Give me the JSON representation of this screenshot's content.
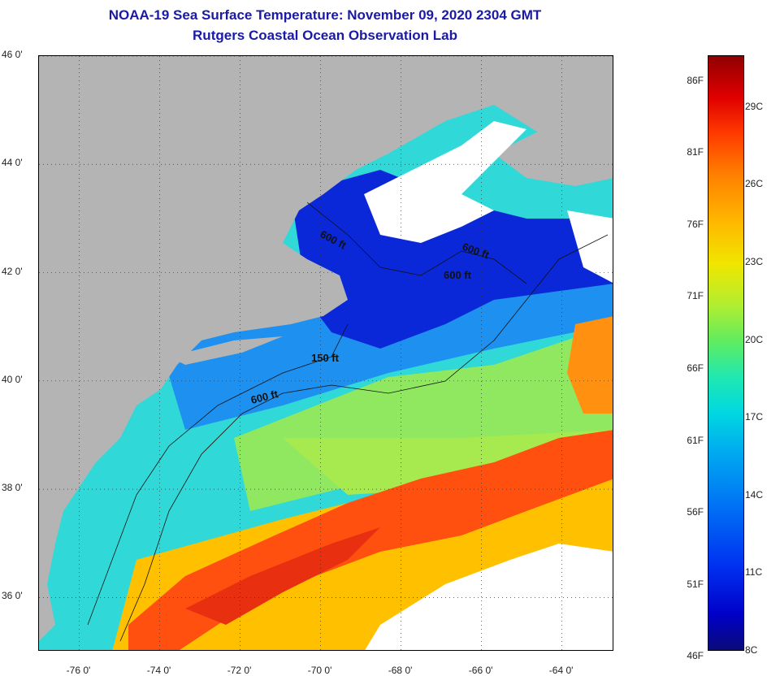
{
  "title": {
    "line1": "NOAA-19 Sea Surface Temperature:  November 09, 2020 2304 GMT",
    "line2": "Rutgers Coastal Ocean Observation Lab"
  },
  "map": {
    "lon_range": [
      -77,
      -62.7
    ],
    "lat_range": [
      35,
      46
    ],
    "lat_labels": [
      {
        "lat": 46,
        "text": "46 0'"
      },
      {
        "lat": 44,
        "text": "44 0'"
      },
      {
        "lat": 42,
        "text": "42 0'"
      },
      {
        "lat": 40,
        "text": "40 0'"
      },
      {
        "lat": 38,
        "text": "38 0'"
      },
      {
        "lat": 36,
        "text": "36 0'"
      }
    ],
    "lon_labels": [
      {
        "lon": -76,
        "text": "-76 0'"
      },
      {
        "lon": -74,
        "text": "-74 0'"
      },
      {
        "lon": -72,
        "text": "-72 0'"
      },
      {
        "lon": -70,
        "text": "-70 0'"
      },
      {
        "lon": -68,
        "text": "-68 0'"
      },
      {
        "lon": -66,
        "text": "-66 0'"
      },
      {
        "lon": -64,
        "text": "-64 0'"
      }
    ],
    "contour_labels": [
      "600 ft",
      "600 ft",
      "600 ft",
      "150 ft",
      "600 ft"
    ],
    "colors": {
      "land": "#b4b4b4",
      "cloud": "#ffffff",
      "cold": "#0a28d8",
      "cool": "#1e90f0",
      "mid": "#30d8d8",
      "mild": "#90e860",
      "warm": "#ffc000",
      "hot": "#ff5010"
    }
  },
  "colorbar": {
    "min_c": 8,
    "max_c": 31,
    "f_labels": [
      {
        "value": 86,
        "text": "86F"
      },
      {
        "value": 81,
        "text": "81F"
      },
      {
        "value": 76,
        "text": "76F"
      },
      {
        "value": 71,
        "text": "71F"
      },
      {
        "value": 66,
        "text": "66F"
      },
      {
        "value": 61,
        "text": "61F"
      },
      {
        "value": 56,
        "text": "56F"
      },
      {
        "value": 51,
        "text": "51F"
      },
      {
        "value": 46,
        "text": "46F"
      }
    ],
    "c_labels": [
      {
        "value": 29,
        "text": "29C"
      },
      {
        "value": 26,
        "text": "26C"
      },
      {
        "value": 23,
        "text": "23C"
      },
      {
        "value": 20,
        "text": "20C"
      },
      {
        "value": 17,
        "text": "17C"
      },
      {
        "value": 14,
        "text": "14C"
      },
      {
        "value": 11,
        "text": "11C"
      },
      {
        "value": 8,
        "text": "8C"
      }
    ]
  }
}
